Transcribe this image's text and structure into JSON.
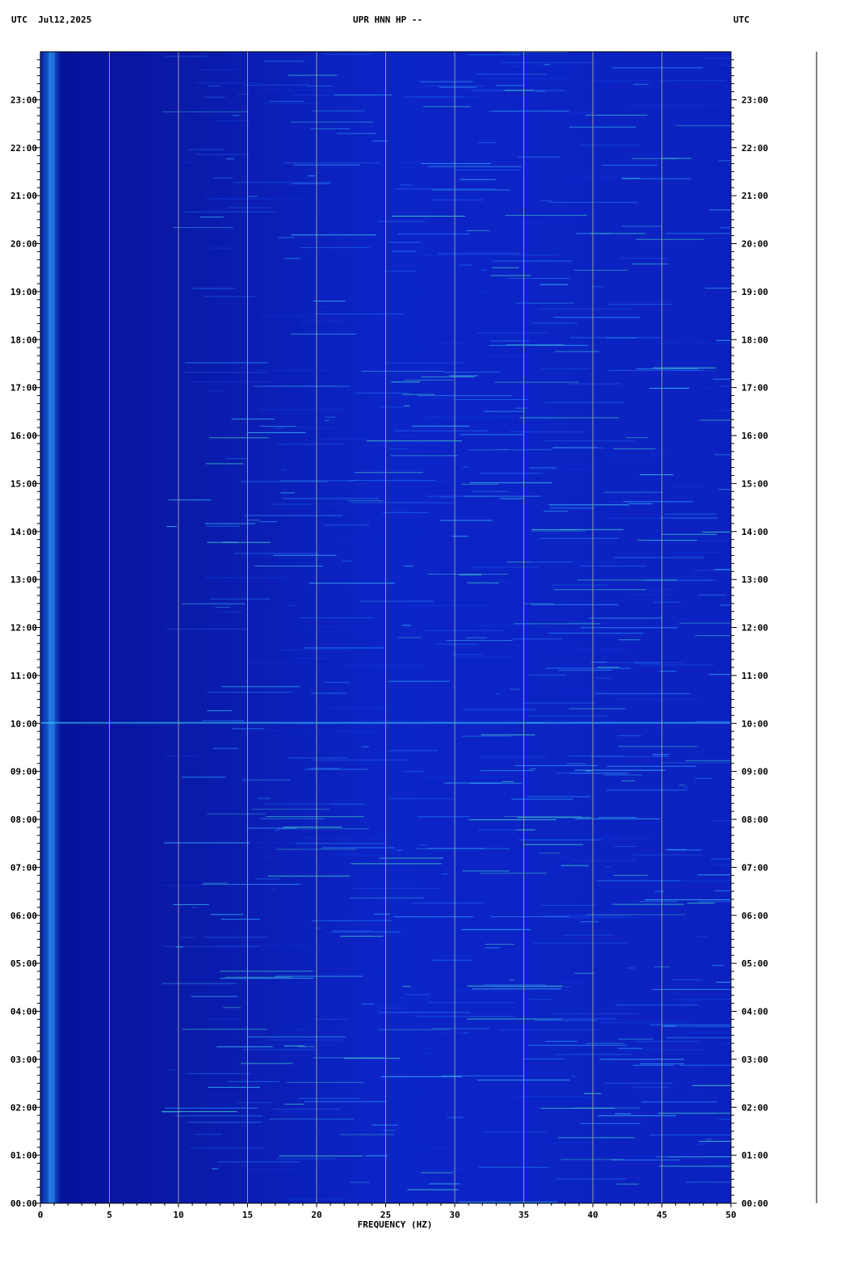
{
  "chart_data": {
    "type": "spectrogram",
    "title": "UPR HNN HP --",
    "date_label": "UTC  Jul12,2025",
    "right_label": "UTC",
    "xlabel": "FREQUENCY (HZ)",
    "xlim": [
      0,
      50
    ],
    "xticks": [
      0,
      5,
      10,
      15,
      20,
      25,
      30,
      35,
      40,
      45,
      50
    ],
    "ylim": [
      0,
      24
    ],
    "yticks": [
      {
        "value": 0,
        "label": "00:00"
      },
      {
        "value": 1,
        "label": "01:00"
      },
      {
        "value": 2,
        "label": "02:00"
      },
      {
        "value": 3,
        "label": "03:00"
      },
      {
        "value": 4,
        "label": "04:00"
      },
      {
        "value": 5,
        "label": "05:00"
      },
      {
        "value": 6,
        "label": "06:00"
      },
      {
        "value": 7,
        "label": "07:00"
      },
      {
        "value": 8,
        "label": "08:00"
      },
      {
        "value": 9,
        "label": "09:00"
      },
      {
        "value": 10,
        "label": "10:00"
      },
      {
        "value": 11,
        "label": "11:00"
      },
      {
        "value": 12,
        "label": "12:00"
      },
      {
        "value": 13,
        "label": "13:00"
      },
      {
        "value": 14,
        "label": "14:00"
      },
      {
        "value": 15,
        "label": "15:00"
      },
      {
        "value": 16,
        "label": "16:00"
      },
      {
        "value": 17,
        "label": "17:00"
      },
      {
        "value": 18,
        "label": "18:00"
      },
      {
        "value": 19,
        "label": "19:00"
      },
      {
        "value": 20,
        "label": "20:00"
      },
      {
        "value": 21,
        "label": "21:00"
      },
      {
        "value": 22,
        "label": "22:00"
      },
      {
        "value": 23,
        "label": "23:00"
      }
    ],
    "grid": true
  }
}
